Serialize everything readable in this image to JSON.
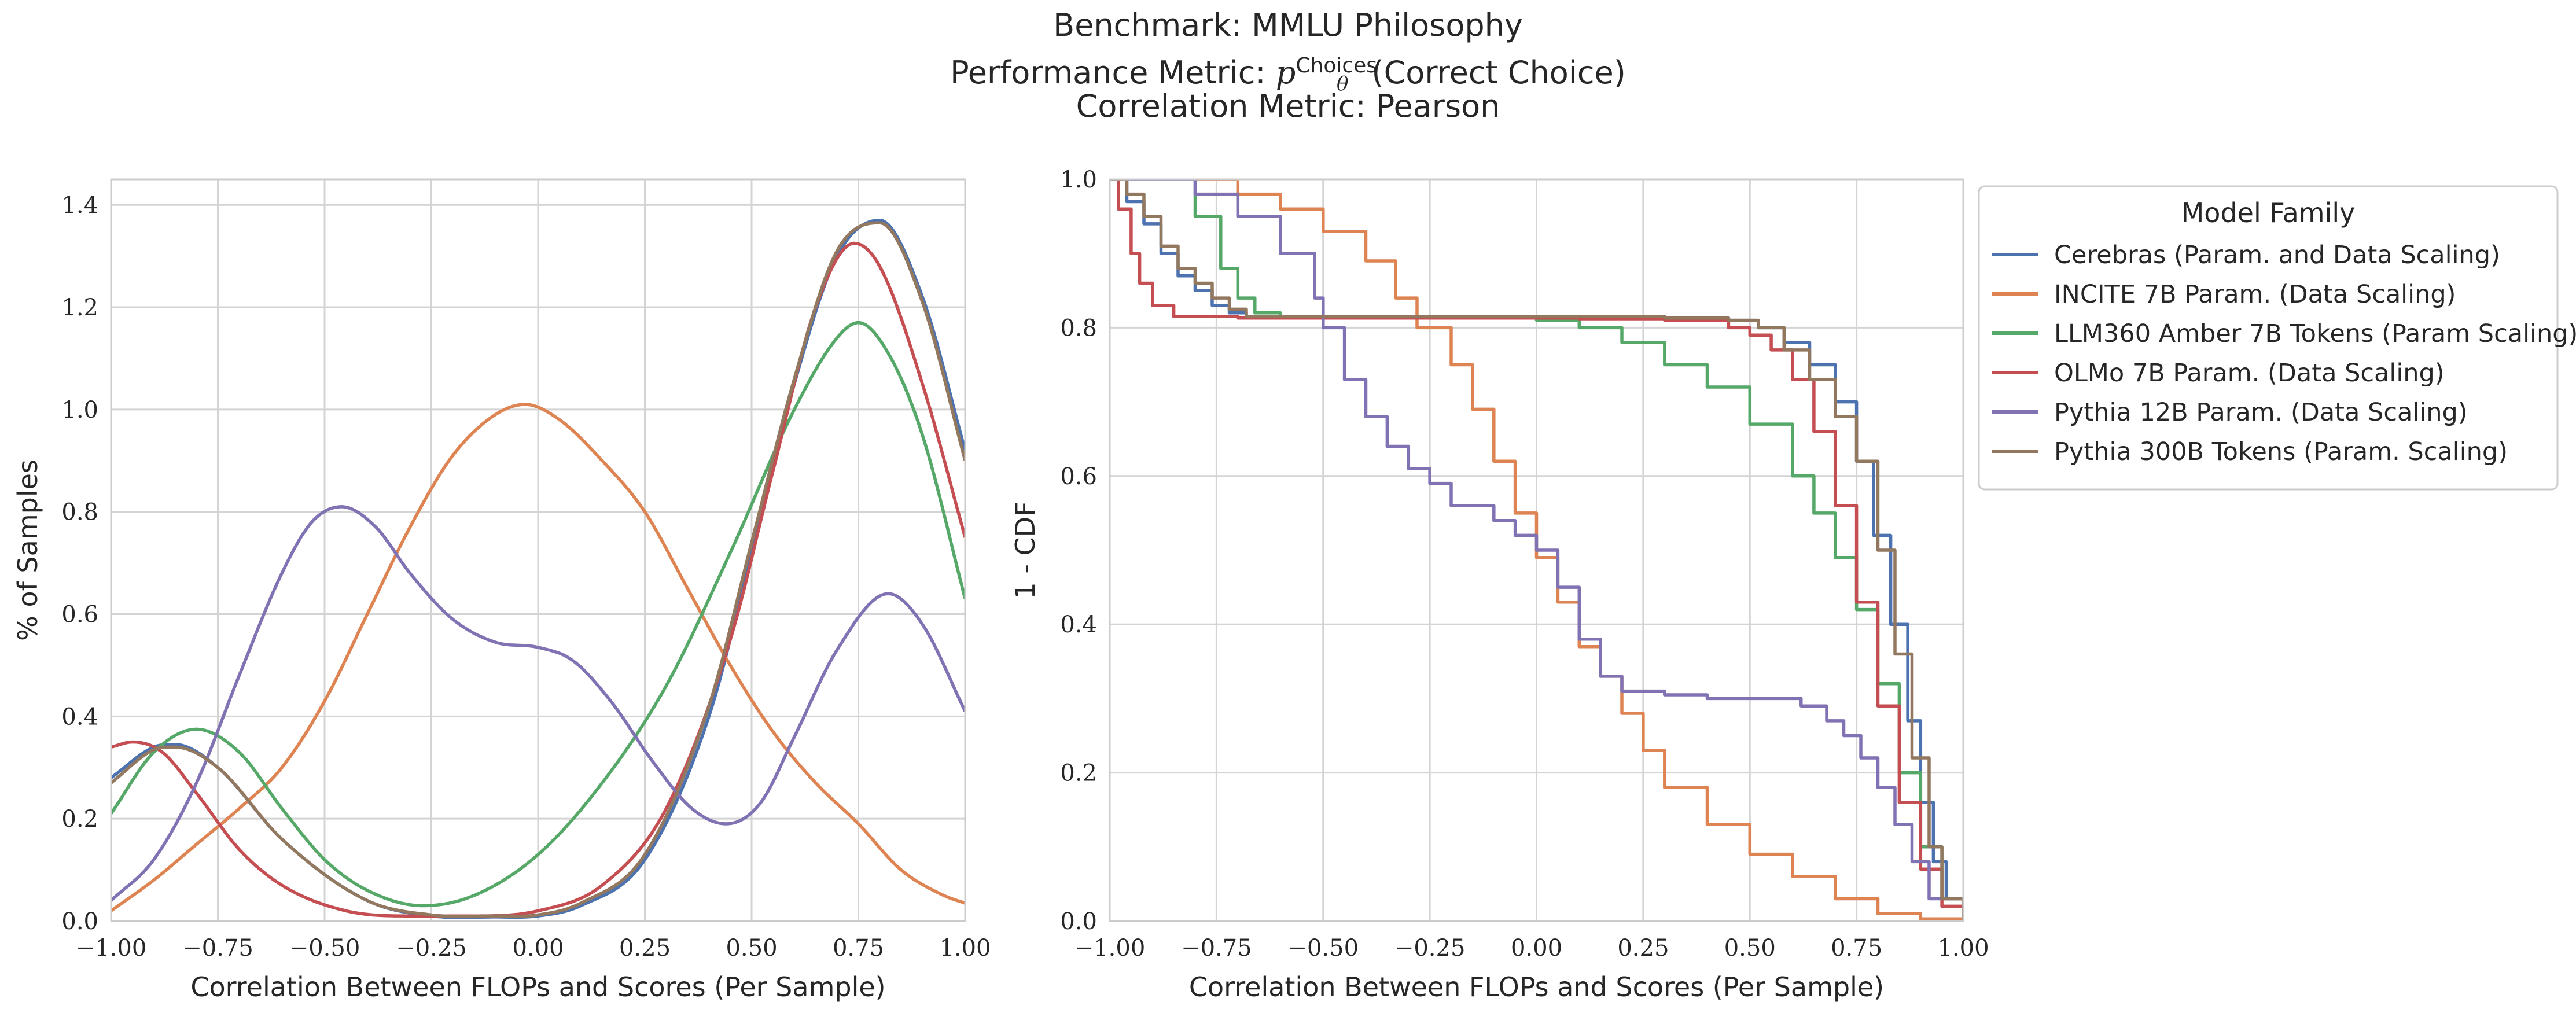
{
  "title": {
    "line1": "Benchmark: MMLU Philosophy",
    "line2_prefix": "Performance Metric: ",
    "line2_symbol": "p",
    "line2_sub": "θ",
    "line2_sup": "Choices",
    "line2_suffix": "(Correct Choice)",
    "line3": "Correlation Metric: Pearson"
  },
  "legend": {
    "title": "Model Family",
    "placement": "outside-right-top"
  },
  "chart_data": [
    {
      "type": "line",
      "kind": "density",
      "xlabel": "Correlation Between FLOPs and Scores (Per Sample)",
      "ylabel": "% of Samples",
      "xlim": [
        -1.0,
        1.0
      ],
      "ylim": [
        0.0,
        1.45
      ],
      "xticks": [
        "−1.00",
        "−0.75",
        "−0.50",
        "−0.25",
        "0.00",
        "0.25",
        "0.50",
        "0.75",
        "1.00"
      ],
      "xtick_values": [
        -1.0,
        -0.75,
        -0.5,
        -0.25,
        0.0,
        0.25,
        0.5,
        0.75,
        1.0
      ],
      "yticks": [
        "0.0",
        "0.2",
        "0.4",
        "0.6",
        "0.8",
        "1.0",
        "1.2",
        "1.4"
      ],
      "ytick_values": [
        0.0,
        0.2,
        0.4,
        0.6,
        0.8,
        1.0,
        1.2,
        1.4
      ],
      "grid": true,
      "series": [
        {
          "name": "Cerebras (Param. and Data Scaling)",
          "color": "#4c72b0",
          "x": [
            -1.0,
            -0.9,
            -0.85,
            -0.75,
            -0.6,
            -0.4,
            -0.25,
            -0.1,
            0.0,
            0.1,
            0.25,
            0.4,
            0.5,
            0.6,
            0.7,
            0.8,
            0.9,
            1.0
          ],
          "y": [
            0.28,
            0.34,
            0.345,
            0.3,
            0.16,
            0.04,
            0.01,
            0.008,
            0.01,
            0.03,
            0.12,
            0.4,
            0.72,
            1.05,
            1.3,
            1.37,
            1.22,
            0.92
          ]
        },
        {
          "name": "INCITE 7B Param. (Data Scaling)",
          "color": "#dd8452",
          "x": [
            -1.0,
            -0.9,
            -0.8,
            -0.7,
            -0.6,
            -0.5,
            -0.4,
            -0.3,
            -0.2,
            -0.1,
            -0.03,
            0.05,
            0.15,
            0.25,
            0.35,
            0.45,
            0.55,
            0.65,
            0.75,
            0.85,
            0.95,
            1.0
          ],
          "y": [
            0.02,
            0.08,
            0.15,
            0.22,
            0.3,
            0.43,
            0.6,
            0.77,
            0.91,
            0.99,
            1.01,
            0.98,
            0.9,
            0.8,
            0.65,
            0.5,
            0.37,
            0.27,
            0.19,
            0.1,
            0.05,
            0.035
          ]
        },
        {
          "name": "LLM360 Amber 7B Tokens (Param Scaling)",
          "color": "#55a868",
          "x": [
            -1.0,
            -0.9,
            -0.8,
            -0.7,
            -0.6,
            -0.5,
            -0.4,
            -0.27,
            -0.15,
            0.0,
            0.15,
            0.3,
            0.45,
            0.6,
            0.7,
            0.75,
            0.82,
            0.9,
            1.0
          ],
          "y": [
            0.21,
            0.33,
            0.375,
            0.33,
            0.22,
            0.12,
            0.06,
            0.03,
            0.05,
            0.13,
            0.27,
            0.46,
            0.72,
            1.0,
            1.14,
            1.17,
            1.11,
            0.95,
            0.63
          ]
        },
        {
          "name": "OLMo 7B Param. (Data Scaling)",
          "color": "#c44e52",
          "x": [
            -1.0,
            -0.95,
            -0.88,
            -0.8,
            -0.7,
            -0.6,
            -0.45,
            -0.3,
            -0.15,
            0.0,
            0.15,
            0.3,
            0.45,
            0.55,
            0.65,
            0.74,
            0.8,
            0.9,
            1.0
          ],
          "y": [
            0.34,
            0.35,
            0.33,
            0.25,
            0.14,
            0.07,
            0.02,
            0.01,
            0.01,
            0.02,
            0.07,
            0.22,
            0.55,
            0.88,
            1.2,
            1.325,
            1.28,
            1.05,
            0.75
          ]
        },
        {
          "name": "Pythia 12B Param. (Data Scaling)",
          "color": "#8172b3",
          "x": [
            -1.0,
            -0.9,
            -0.8,
            -0.7,
            -0.6,
            -0.53,
            -0.46,
            -0.38,
            -0.3,
            -0.2,
            -0.1,
            0.0,
            0.08,
            0.17,
            0.27,
            0.36,
            0.44,
            0.52,
            0.6,
            0.7,
            0.82,
            0.9,
            1.0
          ],
          "y": [
            0.04,
            0.12,
            0.27,
            0.48,
            0.68,
            0.78,
            0.81,
            0.77,
            0.68,
            0.59,
            0.545,
            0.535,
            0.51,
            0.43,
            0.31,
            0.22,
            0.19,
            0.23,
            0.36,
            0.53,
            0.64,
            0.58,
            0.41
          ]
        },
        {
          "name": "Pythia 300B Tokens (Param. Scaling)",
          "color": "#937860",
          "x": [
            -1.0,
            -0.9,
            -0.85,
            -0.75,
            -0.6,
            -0.4,
            -0.25,
            -0.1,
            0.0,
            0.1,
            0.25,
            0.4,
            0.5,
            0.6,
            0.7,
            0.8,
            0.9,
            1.0
          ],
          "y": [
            0.27,
            0.335,
            0.34,
            0.3,
            0.16,
            0.04,
            0.012,
            0.01,
            0.012,
            0.035,
            0.13,
            0.42,
            0.74,
            1.06,
            1.31,
            1.365,
            1.21,
            0.9
          ]
        }
      ]
    },
    {
      "type": "line",
      "kind": "step",
      "xlabel": "Correlation Between FLOPs and Scores (Per Sample)",
      "ylabel": "1 - CDF",
      "xlim": [
        -1.0,
        1.0
      ],
      "ylim": [
        0.0,
        1.0
      ],
      "xticks": [
        "−1.00",
        "−0.75",
        "−0.50",
        "−0.25",
        "0.00",
        "0.25",
        "0.50",
        "0.75",
        "1.00"
      ],
      "xtick_values": [
        -1.0,
        -0.75,
        -0.5,
        -0.25,
        0.0,
        0.25,
        0.5,
        0.75,
        1.0
      ],
      "yticks": [
        "0.0",
        "0.2",
        "0.4",
        "0.6",
        "0.8",
        "1.0"
      ],
      "ytick_values": [
        0.0,
        0.2,
        0.4,
        0.6,
        0.8,
        1.0
      ],
      "grid": true,
      "series": [
        {
          "name": "Cerebras (Param. and Data Scaling)",
          "color": "#4c72b0",
          "x": [
            -1.0,
            -0.96,
            -0.92,
            -0.88,
            -0.84,
            -0.8,
            -0.76,
            -0.72,
            -0.68,
            -0.5,
            0.0,
            0.3,
            0.45,
            0.52,
            0.58,
            0.64,
            0.7,
            0.75,
            0.79,
            0.83,
            0.87,
            0.9,
            0.93,
            0.96,
            1.0
          ],
          "y": [
            1.0,
            0.97,
            0.94,
            0.9,
            0.87,
            0.85,
            0.83,
            0.82,
            0.815,
            0.815,
            0.815,
            0.813,
            0.81,
            0.8,
            0.78,
            0.75,
            0.7,
            0.62,
            0.52,
            0.4,
            0.27,
            0.16,
            0.08,
            0.03,
            0.0
          ]
        },
        {
          "name": "INCITE 7B Param. (Data Scaling)",
          "color": "#dd8452",
          "x": [
            -1.0,
            -0.8,
            -0.7,
            -0.6,
            -0.5,
            -0.4,
            -0.33,
            -0.28,
            -0.2,
            -0.15,
            -0.1,
            -0.05,
            0.0,
            0.05,
            0.1,
            0.15,
            0.2,
            0.25,
            0.3,
            0.4,
            0.5,
            0.6,
            0.7,
            0.8,
            0.9,
            1.0
          ],
          "y": [
            1.0,
            1.0,
            0.98,
            0.96,
            0.93,
            0.89,
            0.84,
            0.8,
            0.75,
            0.69,
            0.62,
            0.55,
            0.49,
            0.43,
            0.37,
            0.33,
            0.28,
            0.23,
            0.18,
            0.13,
            0.09,
            0.06,
            0.03,
            0.01,
            0.003,
            0.0
          ]
        },
        {
          "name": "LLM360 Amber 7B Tokens (Param Scaling)",
          "color": "#55a868",
          "x": [
            -1.0,
            -0.9,
            -0.8,
            -0.74,
            -0.7,
            -0.66,
            -0.6,
            -0.4,
            -0.1,
            0.0,
            0.1,
            0.2,
            0.3,
            0.4,
            0.5,
            0.6,
            0.65,
            0.7,
            0.75,
            0.8,
            0.85,
            0.9,
            0.95,
            1.0
          ],
          "y": [
            1.0,
            1.0,
            0.95,
            0.88,
            0.84,
            0.82,
            0.815,
            0.815,
            0.815,
            0.81,
            0.8,
            0.78,
            0.75,
            0.72,
            0.67,
            0.6,
            0.55,
            0.49,
            0.42,
            0.32,
            0.2,
            0.1,
            0.03,
            0.0
          ]
        },
        {
          "name": "OLMo 7B Param. (Data Scaling)",
          "color": "#c44e52",
          "x": [
            -1.0,
            -0.98,
            -0.95,
            -0.93,
            -0.9,
            -0.85,
            -0.7,
            -0.3,
            0.1,
            0.3,
            0.45,
            0.5,
            0.55,
            0.6,
            0.65,
            0.7,
            0.75,
            0.8,
            0.85,
            0.9,
            0.95,
            1.0
          ],
          "y": [
            1.0,
            0.96,
            0.9,
            0.86,
            0.83,
            0.815,
            0.813,
            0.813,
            0.812,
            0.81,
            0.8,
            0.79,
            0.77,
            0.73,
            0.66,
            0.56,
            0.43,
            0.29,
            0.16,
            0.07,
            0.02,
            0.0
          ]
        },
        {
          "name": "Pythia 12B Param. (Data Scaling)",
          "color": "#8172b3",
          "x": [
            -1.0,
            -0.9,
            -0.8,
            -0.7,
            -0.6,
            -0.52,
            -0.5,
            -0.45,
            -0.4,
            -0.35,
            -0.3,
            -0.25,
            -0.2,
            -0.1,
            -0.05,
            0.0,
            0.05,
            0.1,
            0.15,
            0.2,
            0.3,
            0.4,
            0.5,
            0.55,
            0.62,
            0.68,
            0.72,
            0.76,
            0.8,
            0.84,
            0.88,
            0.92,
            1.0
          ],
          "y": [
            1.0,
            1.0,
            0.98,
            0.95,
            0.9,
            0.84,
            0.8,
            0.73,
            0.68,
            0.64,
            0.61,
            0.59,
            0.56,
            0.54,
            0.52,
            0.5,
            0.45,
            0.38,
            0.33,
            0.31,
            0.305,
            0.3,
            0.3,
            0.3,
            0.29,
            0.27,
            0.25,
            0.22,
            0.18,
            0.13,
            0.08,
            0.03,
            0.0
          ]
        },
        {
          "name": "Pythia 300B Tokens (Param. Scaling)",
          "color": "#937860",
          "x": [
            -1.0,
            -0.96,
            -0.92,
            -0.88,
            -0.84,
            -0.8,
            -0.76,
            -0.72,
            -0.68,
            -0.5,
            0.0,
            0.3,
            0.45,
            0.52,
            0.58,
            0.64,
            0.7,
            0.75,
            0.8,
            0.84,
            0.88,
            0.92,
            0.95,
            1.0
          ],
          "y": [
            1.0,
            0.98,
            0.95,
            0.91,
            0.88,
            0.86,
            0.84,
            0.825,
            0.815,
            0.815,
            0.815,
            0.813,
            0.81,
            0.8,
            0.77,
            0.73,
            0.68,
            0.62,
            0.5,
            0.36,
            0.22,
            0.1,
            0.03,
            0.0
          ]
        }
      ]
    }
  ]
}
